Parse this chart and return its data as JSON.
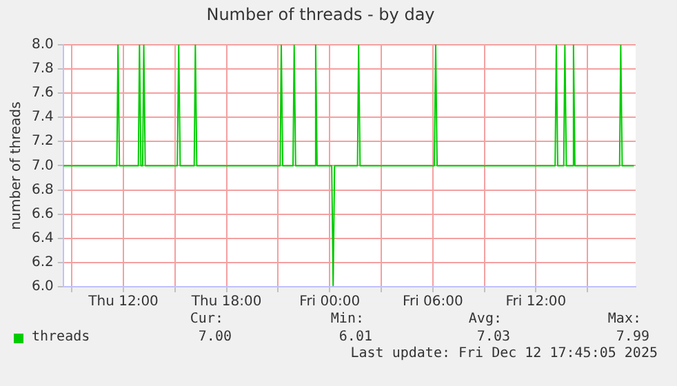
{
  "chart_data": {
    "type": "line",
    "title": "Number of threads - by day",
    "ylabel": "number of threads",
    "xlim": [
      "2025-12-11T08:30",
      "2025-12-12T17:48"
    ],
    "xticks": [
      {
        "value": "2025-12-11T09:00",
        "label": null
      },
      {
        "value": "2025-12-11T12:00",
        "label": "Thu 12:00"
      },
      {
        "value": "2025-12-11T15:00",
        "label": null
      },
      {
        "value": "2025-12-11T18:00",
        "label": "Thu 18:00"
      },
      {
        "value": "2025-12-11T21:00",
        "label": null
      },
      {
        "value": "2025-12-12T00:00",
        "label": "Fri 00:00"
      },
      {
        "value": "2025-12-12T03:00",
        "label": null
      },
      {
        "value": "2025-12-12T06:00",
        "label": "Fri 06:00"
      },
      {
        "value": "2025-12-12T09:00",
        "label": null
      },
      {
        "value": "2025-12-12T12:00",
        "label": "Fri 12:00"
      },
      {
        "value": "2025-12-12T15:00",
        "label": null
      }
    ],
    "ylim": [
      6,
      8
    ],
    "yticks": [
      {
        "value": 6,
        "label": "6.0"
      },
      {
        "value": 6.2,
        "label": "6.2"
      },
      {
        "value": 6.4,
        "label": "6.4"
      },
      {
        "value": 6.6,
        "label": "6.6"
      },
      {
        "value": 6.8,
        "label": "6.8"
      },
      {
        "value": 7,
        "label": "7.0"
      },
      {
        "value": 7.2,
        "label": "7.2"
      },
      {
        "value": 7.4,
        "label": "7.4"
      },
      {
        "value": 7.6,
        "label": "7.6"
      },
      {
        "value": 7.8,
        "label": "7.8"
      },
      {
        "value": 8,
        "label": "8.0"
      }
    ],
    "grid": true,
    "legend": "bottom left",
    "marker": "none",
    "line_style": "solid",
    "series": [
      {
        "name": "threads",
        "color": "#00cc00",
        "x": [
          "2025-12-11T08:30",
          "2025-12-11T11:37",
          "2025-12-11T11:41",
          "2025-12-11T11:46",
          "2025-12-11T12:52",
          "2025-12-11T12:56",
          "2025-12-11T13:01",
          "2025-12-11T13:07",
          "2025-12-11T13:11",
          "2025-12-11T13:16",
          "2025-12-11T15:08",
          "2025-12-11T15:13",
          "2025-12-11T15:18",
          "2025-12-11T16:07",
          "2025-12-11T16:11",
          "2025-12-11T16:16",
          "2025-12-11T21:07",
          "2025-12-11T21:11",
          "2025-12-11T21:16",
          "2025-12-11T21:52",
          "2025-12-11T21:56",
          "2025-12-11T22:01",
          "2025-12-11T23:07",
          "2025-12-11T23:11",
          "2025-12-11T23:16",
          "2025-12-12T00:07",
          "2025-12-12T00:12",
          "2025-12-12T00:17",
          "2025-12-12T01:37",
          "2025-12-12T01:41",
          "2025-12-12T01:46",
          "2025-12-12T06:05",
          "2025-12-12T06:10",
          "2025-12-12T06:15",
          "2025-12-12T13:07",
          "2025-12-12T13:11",
          "2025-12-12T13:16",
          "2025-12-12T13:37",
          "2025-12-12T13:41",
          "2025-12-12T13:46",
          "2025-12-12T14:07",
          "2025-12-12T14:11",
          "2025-12-12T14:16",
          "2025-12-12T16:52",
          "2025-12-12T16:56",
          "2025-12-12T17:01",
          "2025-12-12T17:42"
        ],
        "values": [
          7,
          7,
          8,
          7,
          7,
          8,
          7,
          7,
          8,
          7,
          7,
          8,
          7,
          7,
          8,
          7,
          7,
          8,
          7,
          7,
          8,
          7,
          7,
          8,
          7,
          7,
          6.01,
          7,
          7,
          8,
          7,
          7,
          8,
          7,
          7,
          8,
          7,
          7,
          8,
          7,
          7,
          8,
          7,
          7,
          8,
          7,
          7
        ]
      }
    ],
    "annotations": [
      "Cur:",
      "Min:",
      "Avg:",
      "Max:",
      "7.00",
      "6.01",
      "7.03",
      "7.99",
      "Last update: Fri Dec 12 17:45:05 2025"
    ]
  }
}
